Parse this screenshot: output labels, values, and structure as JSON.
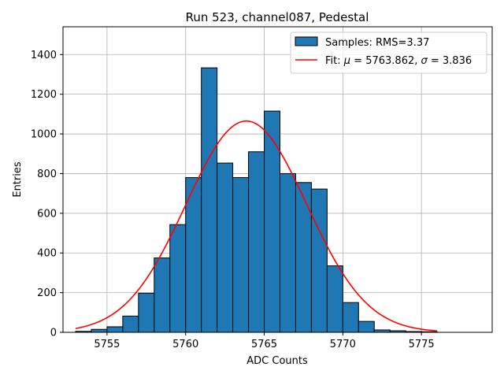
{
  "chart_data": {
    "type": "bar",
    "title": "Run 523, channel087, Pedestal",
    "xlabel": "ADC Counts",
    "ylabel": "Entries",
    "xlim": [
      5752.2,
      5779.5
    ],
    "ylim": [
      0,
      1540
    ],
    "xticks": [
      5755,
      5760,
      5765,
      5770,
      5775
    ],
    "yticks": [
      0,
      200,
      400,
      600,
      800,
      1000,
      1200,
      1400
    ],
    "grid": true,
    "legend_position": "upper-right",
    "histogram": {
      "name": "Samples: RMS=3.37",
      "color": "#1f77b4",
      "edge_color": "#000000",
      "bins": [
        {
          "x0": 5753.0,
          "x1": 5754.0,
          "count": 5
        },
        {
          "x0": 5754.0,
          "x1": 5755.0,
          "count": 15
        },
        {
          "x0": 5755.0,
          "x1": 5756.0,
          "count": 28
        },
        {
          "x0": 5756.0,
          "x1": 5757.0,
          "count": 82
        },
        {
          "x0": 5757.0,
          "x1": 5758.0,
          "count": 197
        },
        {
          "x0": 5758.0,
          "x1": 5759.0,
          "count": 375
        },
        {
          "x0": 5759.0,
          "x1": 5760.0,
          "count": 543
        },
        {
          "x0": 5760.0,
          "x1": 5761.0,
          "count": 780
        },
        {
          "x0": 5761.0,
          "x1": 5762.0,
          "count": 1333
        },
        {
          "x0": 5762.0,
          "x1": 5763.0,
          "count": 853
        },
        {
          "x0": 5763.0,
          "x1": 5764.0,
          "count": 780
        },
        {
          "x0": 5764.0,
          "x1": 5765.0,
          "count": 910
        },
        {
          "x0": 5765.0,
          "x1": 5766.0,
          "count": 1115
        },
        {
          "x0": 5766.0,
          "x1": 5767.0,
          "count": 800
        },
        {
          "x0": 5767.0,
          "x1": 5768.0,
          "count": 755
        },
        {
          "x0": 5768.0,
          "x1": 5769.0,
          "count": 722
        },
        {
          "x0": 5769.0,
          "x1": 5770.0,
          "count": 335
        },
        {
          "x0": 5770.0,
          "x1": 5771.0,
          "count": 150
        },
        {
          "x0": 5771.0,
          "x1": 5772.0,
          "count": 55
        },
        {
          "x0": 5772.0,
          "x1": 5773.0,
          "count": 12
        },
        {
          "x0": 5773.0,
          "x1": 5774.0,
          "count": 8
        },
        {
          "x0": 5774.0,
          "x1": 5775.0,
          "count": 4
        },
        {
          "x0": 5775.0,
          "x1": 5776.0,
          "count": 3
        }
      ]
    },
    "fit": {
      "name": "Fit: μ = 5763.862, σ = 3.836",
      "name_prefix": "Fit: ",
      "mu_symbol": "μ",
      "mu_text": " = 5763.862, ",
      "sigma_symbol": "σ",
      "sigma_text": " = 3.836",
      "color": "#ff0000",
      "mu": 5763.862,
      "sigma": 3.836,
      "amplitude": 1065,
      "x_range": [
        5753.0,
        5776.0
      ]
    }
  }
}
